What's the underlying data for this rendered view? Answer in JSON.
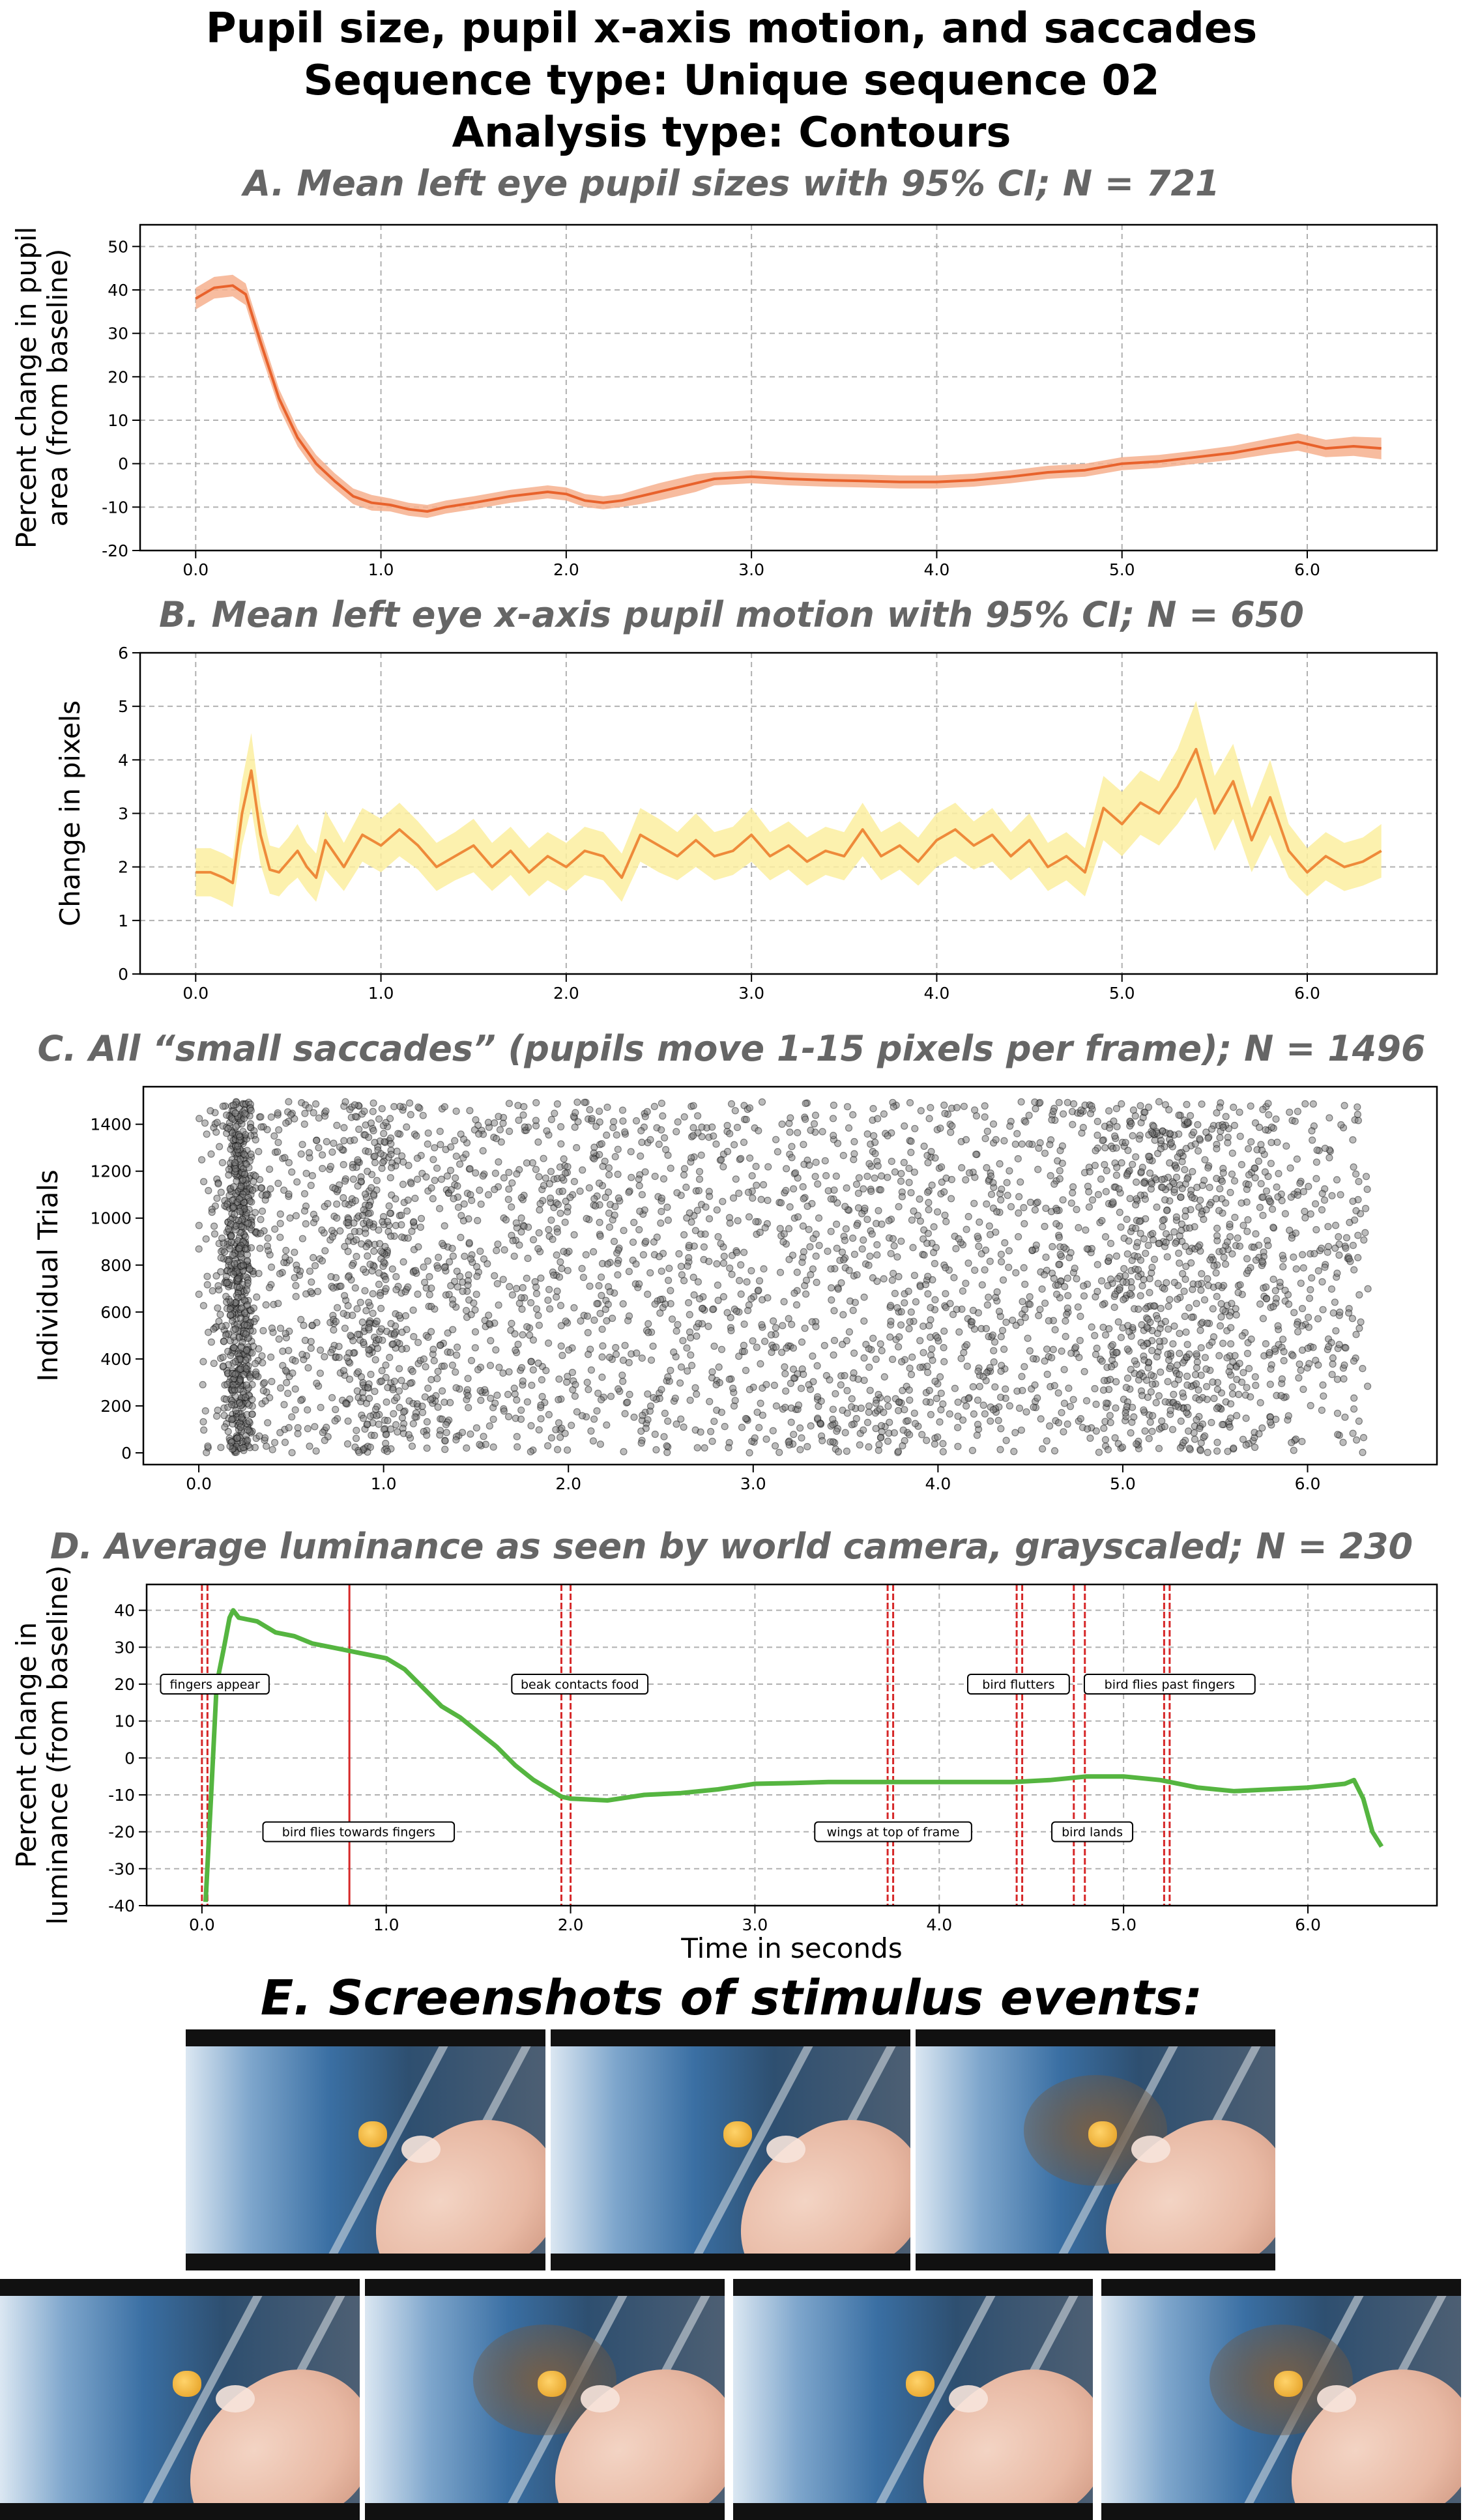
{
  "header": {
    "title_lines": [
      "Pupil size, pupil x-axis motion, and saccades",
      "Sequence type: Unique sequence 02",
      "Analysis type: Contours"
    ]
  },
  "panel_e": {
    "title": "E. Screenshots of stimulus events:",
    "screenshots": [
      {
        "id": "shot-1",
        "bird": false
      },
      {
        "id": "shot-2",
        "bird": false
      },
      {
        "id": "shot-3",
        "bird": true
      },
      {
        "id": "shot-4",
        "bird": false
      },
      {
        "id": "shot-5",
        "bird": true
      },
      {
        "id": "shot-6",
        "bird": false
      },
      {
        "id": "shot-7",
        "bird": true
      }
    ]
  },
  "colors": {
    "grid": "#b0b0b0",
    "pupil_size_line": "#e8622c",
    "pupil_size_ci": "#f6b08e",
    "motion_line": "#ee8a3a",
    "motion_ci": "#fbeea0",
    "saccade_point": "#000000",
    "luminance_line": "#55b540",
    "event_line": "#d62728"
  },
  "chart_data": [
    {
      "id": "A",
      "type": "line",
      "title": "A. Mean left eye pupil sizes with 95% CI; N = 721",
      "xlabel": "",
      "ylabel": "Percent change in pupil area (from baseline)",
      "ylabel_lines": [
        "Percent change in pupil",
        "area (from baseline)"
      ],
      "xlim": [
        -0.3,
        6.7
      ],
      "ylim": [
        -20,
        55
      ],
      "xticks": [
        0.0,
        1.0,
        2.0,
        3.0,
        4.0,
        5.0,
        6.0
      ],
      "xtick_labels": [
        "0.0",
        "1.0",
        "2.0",
        "3.0",
        "4.0",
        "5.0",
        "6.0"
      ],
      "yticks": [
        -20,
        -10,
        0,
        10,
        20,
        30,
        40,
        50
      ],
      "ytick_labels": [
        "-20",
        "-10",
        "0",
        "10",
        "20",
        "30",
        "40",
        "50"
      ],
      "grid": true,
      "series": [
        {
          "x": [
            0.0,
            0.1,
            0.2,
            0.27,
            0.35,
            0.45,
            0.55,
            0.65,
            0.75,
            0.85,
            0.95,
            1.05,
            1.15,
            1.25,
            1.35,
            1.5,
            1.7,
            1.9,
            2.0,
            2.1,
            2.2,
            2.3,
            2.4,
            2.5,
            2.6,
            2.7,
            2.8,
            3.0,
            3.2,
            3.4,
            3.6,
            3.8,
            4.0,
            4.2,
            4.4,
            4.6,
            4.8,
            5.0,
            5.2,
            5.4,
            5.6,
            5.8,
            5.95,
            6.1,
            6.25,
            6.4
          ],
          "y": [
            38,
            40.5,
            41,
            39,
            28,
            15,
            6,
            0,
            -4,
            -7.5,
            -9,
            -9.5,
            -10.5,
            -11,
            -10,
            -9,
            -7.5,
            -6.5,
            -7,
            -8.5,
            -9,
            -8.5,
            -7.5,
            -6.5,
            -5.5,
            -4.5,
            -3.5,
            -3,
            -3.5,
            -3.8,
            -4,
            -4.2,
            -4.2,
            -3.8,
            -3,
            -2,
            -1.5,
            0,
            0.5,
            1.5,
            2.5,
            4,
            5,
            3.5,
            4,
            3.5
          ],
          "ci": [
            2.5,
            2.5,
            2.5,
            2.5,
            2.5,
            2.2,
            2,
            2,
            1.8,
            1.8,
            1.8,
            1.5,
            1.5,
            1.5,
            1.5,
            1.5,
            1.5,
            1.5,
            1.5,
            1.5,
            1.5,
            1.5,
            1.8,
            2,
            2,
            2,
            1.5,
            1.5,
            1.5,
            1.5,
            1.5,
            1.5,
            1.5,
            1.5,
            1.5,
            1.5,
            1.5,
            1.5,
            1.5,
            1.5,
            1.6,
            1.8,
            2,
            2,
            2.2,
            2.5
          ]
        }
      ]
    },
    {
      "id": "B",
      "type": "line",
      "title": "B. Mean left eye x-axis pupil motion with 95% CI; N = 650",
      "xlabel": "",
      "ylabel": "Change in pixels",
      "ylabel_lines": [
        "Change in pixels"
      ],
      "xlim": [
        -0.3,
        6.7
      ],
      "ylim": [
        0,
        6
      ],
      "xticks": [
        0.0,
        1.0,
        2.0,
        3.0,
        4.0,
        5.0,
        6.0
      ],
      "xtick_labels": [
        "0.0",
        "1.0",
        "2.0",
        "3.0",
        "4.0",
        "5.0",
        "6.0"
      ],
      "yticks": [
        0,
        1,
        2,
        3,
        4,
        5,
        6
      ],
      "ytick_labels": [
        "0",
        "1",
        "2",
        "3",
        "4",
        "5",
        "6"
      ],
      "grid": true,
      "series": [
        {
          "x": [
            0.0,
            0.08,
            0.15,
            0.2,
            0.25,
            0.3,
            0.35,
            0.4,
            0.45,
            0.5,
            0.55,
            0.6,
            0.65,
            0.7,
            0.8,
            0.9,
            1.0,
            1.1,
            1.2,
            1.3,
            1.4,
            1.5,
            1.6,
            1.7,
            1.8,
            1.9,
            2.0,
            2.1,
            2.2,
            2.3,
            2.4,
            2.5,
            2.6,
            2.7,
            2.8,
            2.9,
            3.0,
            3.1,
            3.2,
            3.3,
            3.4,
            3.5,
            3.6,
            3.7,
            3.8,
            3.9,
            4.0,
            4.1,
            4.2,
            4.3,
            4.4,
            4.5,
            4.6,
            4.7,
            4.8,
            4.9,
            5.0,
            5.1,
            5.2,
            5.3,
            5.4,
            5.5,
            5.6,
            5.7,
            5.8,
            5.9,
            6.0,
            6.1,
            6.2,
            6.3,
            6.4
          ],
          "y": [
            1.9,
            1.9,
            1.8,
            1.7,
            3.0,
            3.8,
            2.6,
            1.95,
            1.9,
            2.1,
            2.3,
            2.0,
            1.8,
            2.5,
            2.0,
            2.6,
            2.4,
            2.7,
            2.4,
            2.0,
            2.2,
            2.4,
            2.0,
            2.3,
            1.9,
            2.2,
            2.0,
            2.3,
            2.2,
            1.8,
            2.6,
            2.4,
            2.2,
            2.5,
            2.2,
            2.3,
            2.6,
            2.2,
            2.4,
            2.1,
            2.3,
            2.2,
            2.7,
            2.2,
            2.4,
            2.1,
            2.5,
            2.7,
            2.4,
            2.6,
            2.2,
            2.5,
            2.0,
            2.2,
            1.9,
            3.1,
            2.8,
            3.2,
            3.0,
            3.5,
            4.2,
            3.0,
            3.6,
            2.5,
            3.3,
            2.3,
            1.9,
            2.2,
            2.0,
            2.1,
            2.3
          ],
          "ci": [
            0.45,
            0.45,
            0.45,
            0.45,
            0.6,
            0.7,
            0.55,
            0.45,
            0.45,
            0.45,
            0.5,
            0.45,
            0.45,
            0.55,
            0.45,
            0.5,
            0.5,
            0.5,
            0.45,
            0.45,
            0.45,
            0.5,
            0.45,
            0.45,
            0.45,
            0.45,
            0.45,
            0.45,
            0.45,
            0.45,
            0.5,
            0.5,
            0.45,
            0.5,
            0.45,
            0.45,
            0.5,
            0.45,
            0.45,
            0.45,
            0.45,
            0.45,
            0.5,
            0.45,
            0.45,
            0.45,
            0.5,
            0.5,
            0.45,
            0.5,
            0.45,
            0.5,
            0.45,
            0.45,
            0.45,
            0.6,
            0.6,
            0.6,
            0.6,
            0.7,
            0.9,
            0.7,
            0.7,
            0.6,
            0.7,
            0.5,
            0.45,
            0.45,
            0.45,
            0.45,
            0.5
          ]
        }
      ]
    },
    {
      "id": "C",
      "type": "scatter",
      "title": "C. All “small saccades” (pupils move 1-15 pixels per frame); N = 1496",
      "xlabel": "",
      "ylabel": "Individual Trials",
      "ylabel_lines": [
        "Individual Trials"
      ],
      "xlim": [
        -0.3,
        6.7
      ],
      "ylim": [
        -50,
        1560
      ],
      "xticks": [
        0.0,
        1.0,
        2.0,
        3.0,
        4.0,
        5.0,
        6.0
      ],
      "xtick_labels": [
        "0.0",
        "1.0",
        "2.0",
        "3.0",
        "4.0",
        "5.0",
        "6.0"
      ],
      "yticks": [
        0,
        200,
        400,
        600,
        800,
        1000,
        1200,
        1400
      ],
      "ytick_labels": [
        "0",
        "200",
        "400",
        "600",
        "800",
        "1000",
        "1200",
        "1400"
      ],
      "grid": false,
      "point_count": 4300,
      "x_range": [
        0.0,
        6.33
      ],
      "y_range": [
        0,
        1496
      ],
      "dense_regions": [
        {
          "x_center": 0.22,
          "x_width": 0.08,
          "weight": 0.14
        },
        {
          "x_center": 0.95,
          "x_width": 0.25,
          "weight": 0.05
        },
        {
          "x_center": 5.25,
          "x_width": 0.45,
          "weight": 0.08
        }
      ]
    },
    {
      "id": "D",
      "type": "line",
      "title": "D. Average luminance as seen by world camera, grayscaled; N = 230",
      "xlabel": "Time in seconds",
      "ylabel": "Percent change in luminance (from baseline)",
      "ylabel_lines": [
        "Percent change in",
        "luminance (from baseline)"
      ],
      "xlim": [
        -0.3,
        6.7
      ],
      "ylim": [
        -40,
        47
      ],
      "xticks": [
        0.0,
        1.0,
        2.0,
        3.0,
        4.0,
        5.0,
        6.0
      ],
      "xtick_labels": [
        "0.0",
        "1.0",
        "2.0",
        "3.0",
        "4.0",
        "5.0",
        "6.0"
      ],
      "yticks": [
        -40,
        -30,
        -20,
        -10,
        0,
        10,
        20,
        30,
        40
      ],
      "ytick_labels": [
        "-40",
        "-30",
        "-20",
        "-10",
        "0",
        "10",
        "20",
        "30",
        "40"
      ],
      "grid": true,
      "series": [
        {
          "x": [
            0.02,
            0.05,
            0.08,
            0.12,
            0.15,
            0.17,
            0.2,
            0.3,
            0.4,
            0.5,
            0.6,
            0.7,
            0.8,
            0.9,
            1.0,
            1.1,
            1.2,
            1.3,
            1.4,
            1.5,
            1.6,
            1.7,
            1.8,
            1.9,
            1.95,
            2.0,
            2.2,
            2.4,
            2.6,
            2.8,
            3.0,
            3.2,
            3.4,
            3.6,
            3.8,
            4.0,
            4.2,
            4.4,
            4.6,
            4.8,
            5.0,
            5.2,
            5.4,
            5.6,
            5.8,
            6.0,
            6.2,
            6.25,
            6.3,
            6.35,
            6.4
          ],
          "y": [
            -39,
            -10,
            20,
            30,
            38,
            40,
            38,
            37,
            34,
            33,
            31,
            30,
            29,
            28,
            27,
            24,
            19,
            14,
            11,
            7,
            3,
            -2,
            -6,
            -9,
            -10.5,
            -11,
            -11.5,
            -10,
            -9.5,
            -8.5,
            -7,
            -6.8,
            -6.5,
            -6.5,
            -6.5,
            -6.5,
            -6.5,
            -6.5,
            -6,
            -5,
            -5,
            -6,
            -8,
            -9,
            -8.5,
            -8,
            -7,
            -6,
            -11,
            -20,
            -24
          ]
        }
      ],
      "event_lines": [
        {
          "x": 0.0,
          "style": "dashed"
        },
        {
          "x": 0.03,
          "style": "dashed"
        },
        {
          "x": 0.8,
          "style": "solid"
        },
        {
          "x": 1.95,
          "style": "dashed"
        },
        {
          "x": 2.0,
          "style": "dashed"
        },
        {
          "x": 3.72,
          "style": "dashed"
        },
        {
          "x": 3.75,
          "style": "dashed"
        },
        {
          "x": 4.42,
          "style": "dashed"
        },
        {
          "x": 4.45,
          "style": "dashed"
        },
        {
          "x": 4.73,
          "style": "dashed"
        },
        {
          "x": 4.79,
          "style": "dashed"
        },
        {
          "x": 5.22,
          "style": "dashed"
        },
        {
          "x": 5.25,
          "style": "dashed"
        }
      ],
      "annotations": [
        {
          "text": "fingers appear",
          "x": 0.07,
          "y": 20
        },
        {
          "text": "bird flies towards fingers",
          "x": 0.85,
          "y": -20
        },
        {
          "text": "beak contacts food",
          "x": 2.05,
          "y": 20
        },
        {
          "text": "wings at top of frame",
          "x": 3.75,
          "y": -20
        },
        {
          "text": "bird flutters",
          "x": 4.43,
          "y": 20
        },
        {
          "text": "bird lands",
          "x": 4.83,
          "y": -20
        },
        {
          "text": "bird flies past fingers",
          "x": 5.25,
          "y": 20
        }
      ]
    }
  ]
}
